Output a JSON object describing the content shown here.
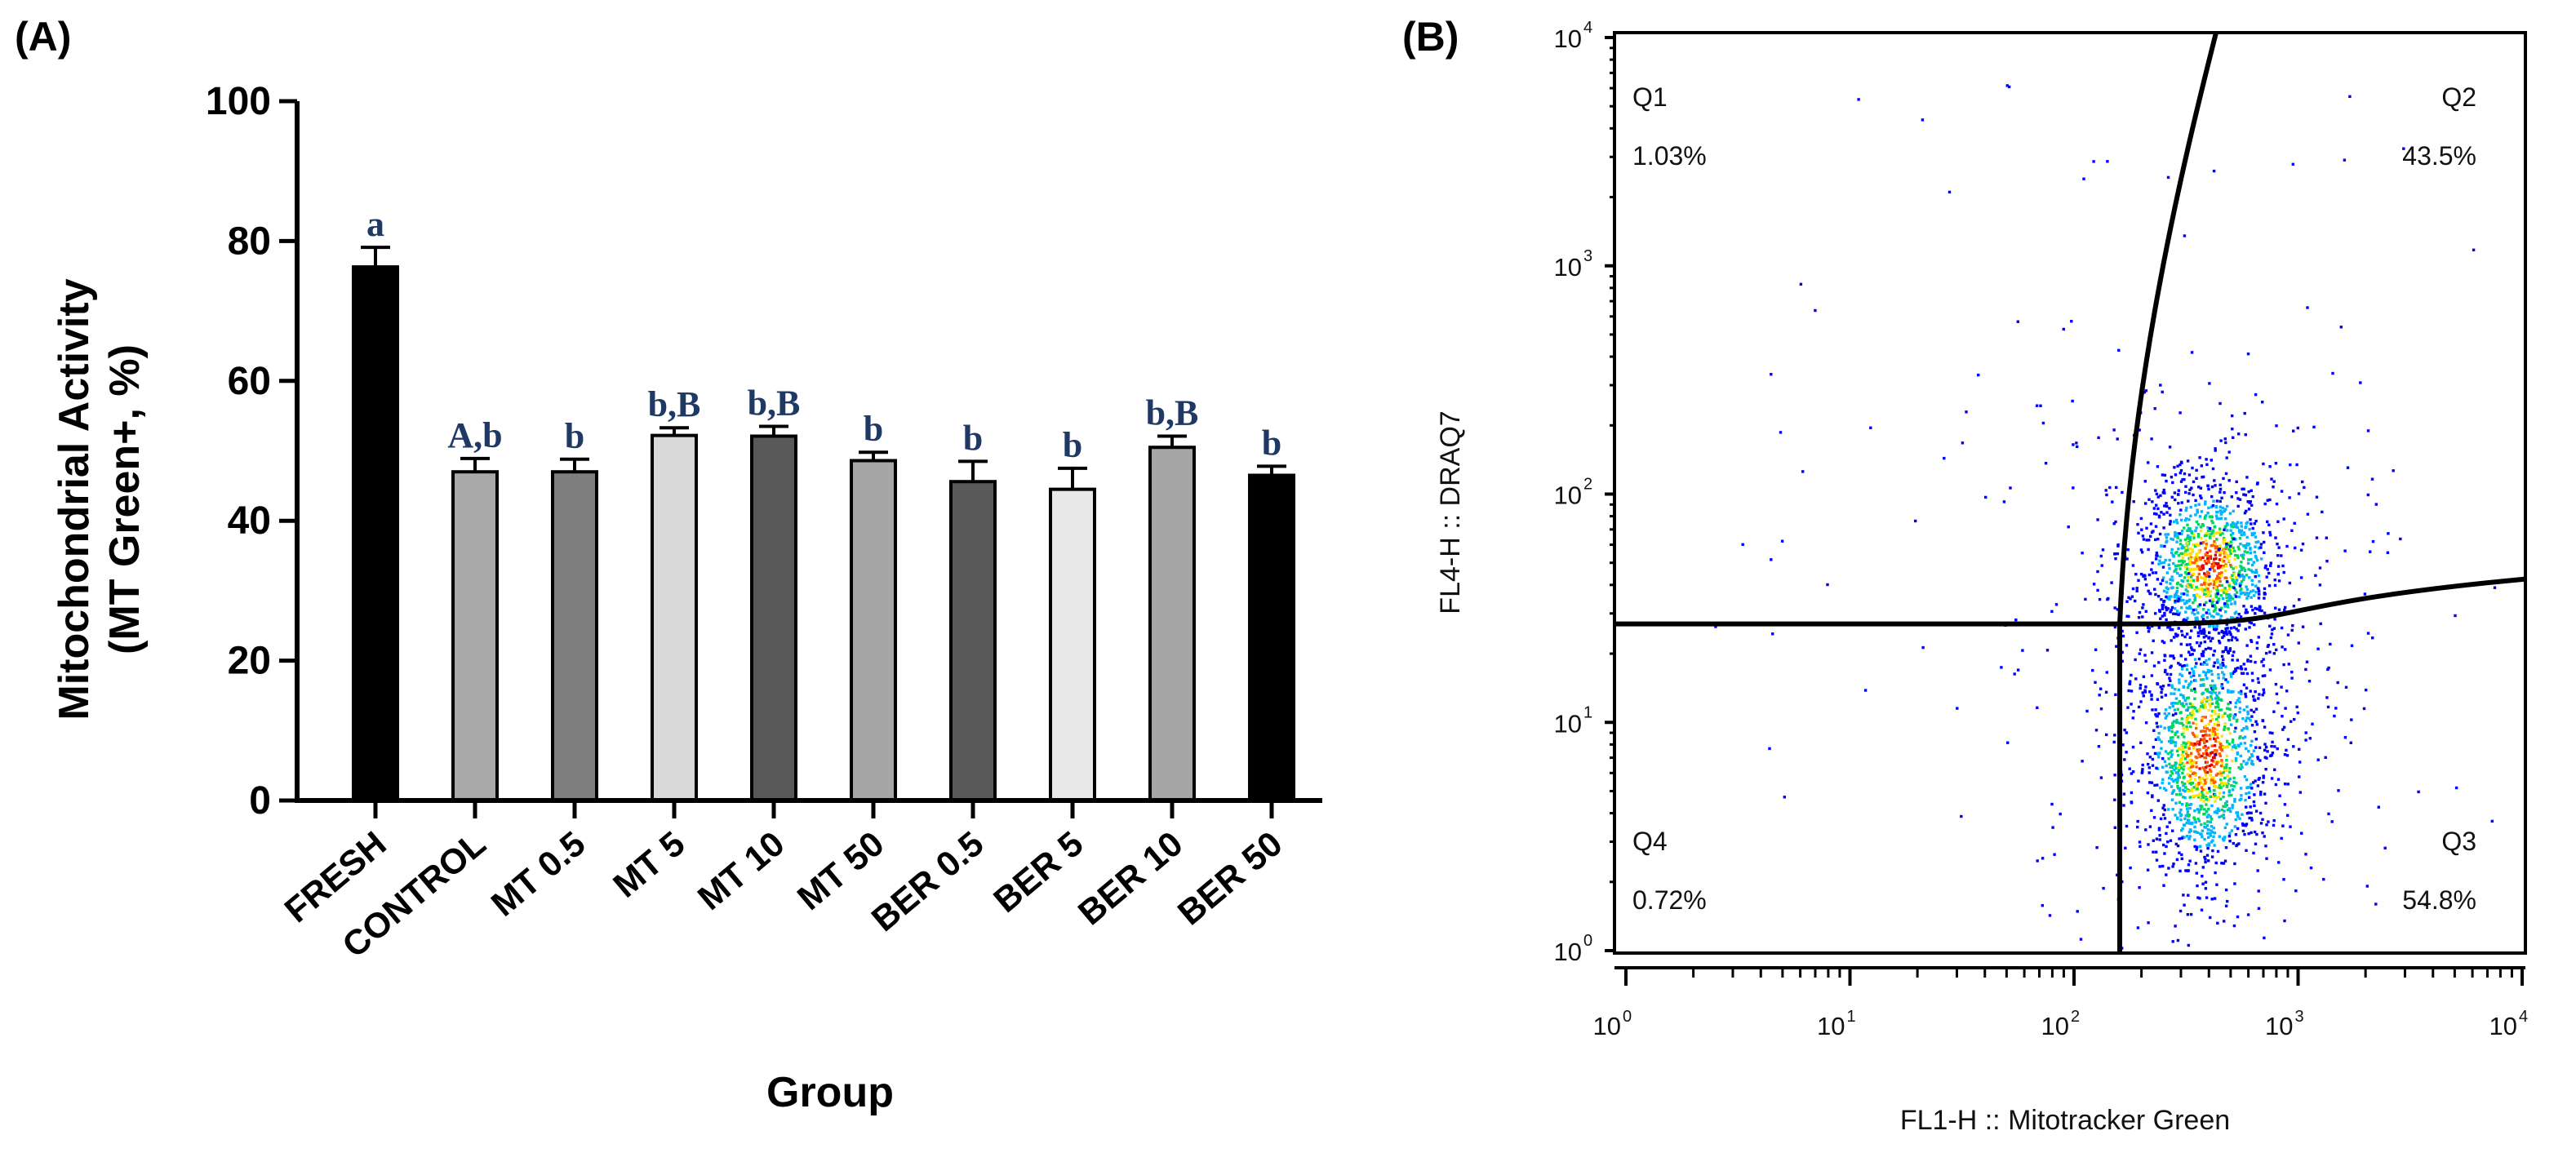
{
  "chart_data": [
    {
      "type": "bar",
      "panel_label": "(A)",
      "ylabel_lines": [
        "Mitochondrial Activity",
        "(MT Green+, %)"
      ],
      "xlabel": "Group",
      "ylim": [
        0,
        100
      ],
      "yticks": [
        0,
        20,
        40,
        60,
        80,
        100
      ],
      "categories": [
        "FRESH",
        "CONTROL",
        "MT 0.5",
        "MT 5",
        "MT 10",
        "MT 50",
        "BER 0.5",
        "BER 5",
        "BER 10",
        "BER 50"
      ],
      "values": [
        76.3,
        47.0,
        47.0,
        52.2,
        52.1,
        48.6,
        45.6,
        44.5,
        50.5,
        46.5
      ],
      "errors": [
        2.8,
        1.9,
        1.8,
        1.1,
        1.4,
        1.2,
        2.9,
        3.0,
        1.6,
        1.3
      ],
      "significance": [
        "a",
        "A,b",
        "b",
        "b,B",
        "b,B",
        "b",
        "b",
        "b",
        "b,B",
        "b"
      ],
      "bar_colors": [
        "#000000",
        "#a9a9a9",
        "#7f7f7f",
        "#d9d9d9",
        "#595959",
        "#a6a6a6",
        "#595959",
        "#e8e8e8",
        "#a6a6a6",
        "#000000"
      ],
      "grid": false
    },
    {
      "type": "scatter",
      "panel_label": "(B)",
      "xlabel": "FL1-H :: Mitotracker Green",
      "ylabel": "FL4-H :: DRAQ7",
      "x_scale": "log",
      "y_scale": "log",
      "xlim": [
        1,
        10000
      ],
      "ylim": [
        1,
        10000
      ],
      "tick_base": "10",
      "tick_exponents": [
        "0",
        "1",
        "2",
        "3",
        "4"
      ],
      "quadrants": [
        {
          "name": "Q1",
          "percent": "1.03%"
        },
        {
          "name": "Q2",
          "percent": "43.5%"
        },
        {
          "name": "Q3",
          "percent": "54.8%"
        },
        {
          "name": "Q4",
          "percent": "0.72%"
        }
      ],
      "gate": {
        "x_threshold": 160,
        "y_threshold": 27
      },
      "populations": [
        {
          "label": "Q2 cluster",
          "x_center": 400,
          "y_center": 50
        },
        {
          "label": "Q3 cluster",
          "x_center": 380,
          "y_center": 7.5
        }
      ],
      "density_colors": [
        "#0000ff",
        "#00b4ff",
        "#00d85a",
        "#ffe400",
        "#ff5a00",
        "#e00000"
      ],
      "grid": false
    }
  ]
}
